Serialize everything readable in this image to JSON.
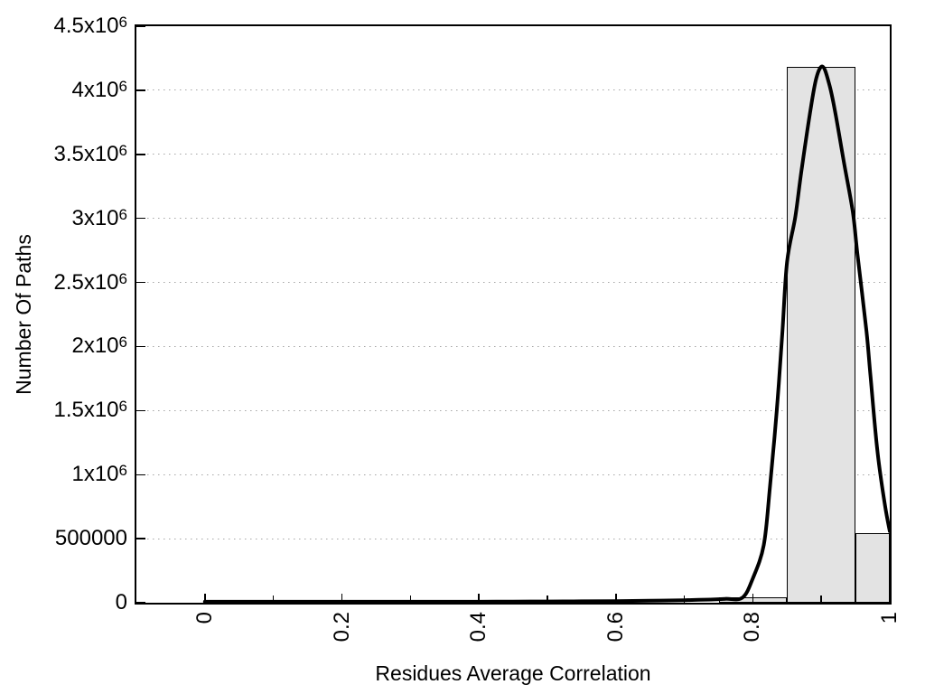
{
  "chart_data": {
    "type": "bar",
    "subtype": "histogram-with-fit-curve",
    "title": "",
    "xlabel": "Residues Average Correlation",
    "ylabel": "Number Of Paths",
    "xlim": [
      -0.1,
      1.0
    ],
    "ylim": [
      0,
      4500000
    ],
    "grid": "horizontal-dotted",
    "grid_color": "#a6a6a6",
    "background_color": "#ffffff",
    "axis_color": "#000000",
    "x_major_ticks": [
      0,
      0.2,
      0.4,
      0.6,
      0.8,
      1
    ],
    "x_major_tick_labels": [
      "0",
      "0.2",
      "0.4",
      "0.6",
      "0.8",
      "1"
    ],
    "x_minor_ticks": [
      0.1,
      0.3,
      0.5,
      0.7,
      0.9
    ],
    "y_ticks": [
      0,
      500000,
      1000000,
      1500000,
      2000000,
      2500000,
      3000000,
      3500000,
      4000000,
      4500000
    ],
    "y_tick_labels": [
      "0",
      "500000",
      "1x10^6",
      "1.5x10^6",
      "2x10^6",
      "2.5x10^6",
      "3x10^6",
      "3.5x10^6",
      "4x10^6",
      "4.5x10^6"
    ],
    "bars": {
      "fill_color": "#e3e3e3",
      "edge_color": "#000000",
      "bins": [
        {
          "x0": 0.75,
          "x1": 0.85,
          "count": 40000
        },
        {
          "x0": 0.85,
          "x1": 0.95,
          "count": 4180000
        },
        {
          "x0": 0.95,
          "x1": 1.0,
          "count": 545000
        }
      ]
    },
    "curve": {
      "color": "#000000",
      "stroke_width": 4,
      "points": [
        [
          0.0,
          8000
        ],
        [
          0.05,
          8000
        ],
        [
          0.1,
          8000
        ],
        [
          0.15,
          8000
        ],
        [
          0.2,
          8000
        ],
        [
          0.25,
          8000
        ],
        [
          0.3,
          8000
        ],
        [
          0.35,
          8000
        ],
        [
          0.4,
          8000
        ],
        [
          0.45,
          9000
        ],
        [
          0.5,
          10000
        ],
        [
          0.55,
          11000
        ],
        [
          0.6,
          13000
        ],
        [
          0.65,
          16000
        ],
        [
          0.7,
          20000
        ],
        [
          0.73,
          24000
        ],
        [
          0.76,
          30000
        ],
        [
          0.785,
          40000
        ],
        [
          0.8,
          190000
        ],
        [
          0.816,
          450000
        ],
        [
          0.825,
          900000
        ],
        [
          0.835,
          1500000
        ],
        [
          0.843,
          2100000
        ],
        [
          0.85,
          2660000
        ],
        [
          0.862,
          3010000
        ],
        [
          0.871,
          3370000
        ],
        [
          0.884,
          3840000
        ],
        [
          0.893,
          4100000
        ],
        [
          0.902,
          4185000
        ],
        [
          0.911,
          4060000
        ],
        [
          0.92,
          3840000
        ],
        [
          0.933,
          3440000
        ],
        [
          0.946,
          3050000
        ],
        [
          0.953,
          2710000
        ],
        [
          0.966,
          2120000
        ],
        [
          0.972,
          1760000
        ],
        [
          0.982,
          1180000
        ],
        [
          0.993,
          760000
        ],
        [
          1.0,
          558000
        ]
      ]
    }
  }
}
